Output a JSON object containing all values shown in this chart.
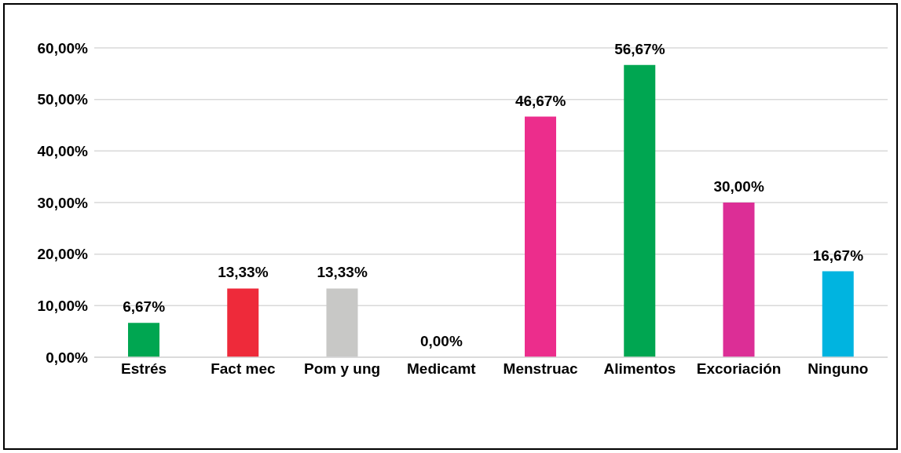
{
  "chart_data": {
    "type": "bar",
    "categories": [
      "Estrés",
      "Fact mec",
      "Pom y ung",
      "Medicamt",
      "Menstruac",
      "Alimentos",
      "Excoriación",
      "Ninguno"
    ],
    "values": [
      6.67,
      13.33,
      13.33,
      0,
      46.67,
      56.67,
      30,
      16.67
    ],
    "colors": [
      "#00a651",
      "#ee2a3a",
      "#c8c8c6",
      "#ec2d8c",
      "#ec2d8c",
      "#00a651",
      "#dc2e96",
      "#00b4e0"
    ],
    "value_labels": [
      "6,67%",
      "13,33%",
      "13,33%",
      "0,00%",
      "46,67%",
      "56,67%",
      "30,00%",
      "16,67%"
    ],
    "ylim": [
      0,
      60
    ],
    "yticks": [
      {
        "value": 0,
        "label": "0,00%"
      },
      {
        "value": 10,
        "label": "10,00%"
      },
      {
        "value": 20,
        "label": "20,00%"
      },
      {
        "value": 30,
        "label": "30,00%"
      },
      {
        "value": 40,
        "label": "40,00%"
      },
      {
        "value": 50,
        "label": "50,00%"
      },
      {
        "value": 60,
        "label": "60,00%"
      }
    ],
    "grid": "y",
    "legend": false
  }
}
